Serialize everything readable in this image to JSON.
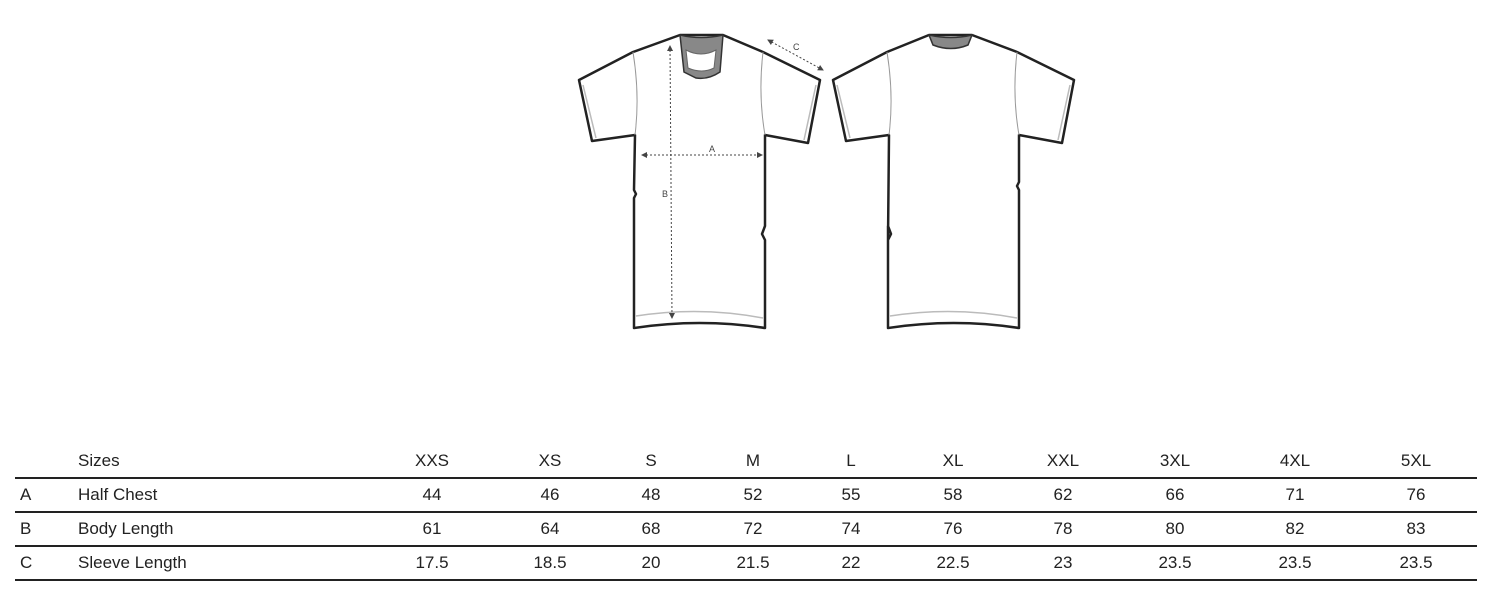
{
  "diagram": {
    "views": [
      "front",
      "back"
    ],
    "measurement_labels": {
      "chest": "A",
      "body": "B",
      "sleeve": "C"
    }
  },
  "table": {
    "header_label": "Sizes",
    "sizes": [
      "XXS",
      "XS",
      "S",
      "M",
      "L",
      "XL",
      "XXL",
      "3XL",
      "4XL",
      "5XL"
    ],
    "rows": [
      {
        "letter": "A",
        "label": "Half Chest",
        "values": [
          "44",
          "46",
          "48",
          "52",
          "55",
          "58",
          "62",
          "66",
          "71",
          "76"
        ]
      },
      {
        "letter": "B",
        "label": "Body Length",
        "values": [
          "61",
          "64",
          "68",
          "72",
          "74",
          "76",
          "78",
          "80",
          "82",
          "83"
        ]
      },
      {
        "letter": "C",
        "label": "Sleeve Length",
        "values": [
          "17.5",
          "18.5",
          "20",
          "21.5",
          "22",
          "22.5",
          "23",
          "23.5",
          "23.5",
          "23.5"
        ]
      }
    ]
  }
}
